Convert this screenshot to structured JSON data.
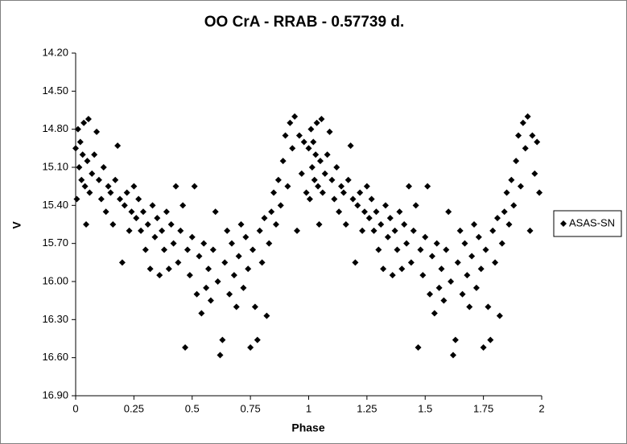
{
  "chart_data": {
    "type": "scatter",
    "title": "OO CrA - RRAB - 0.57739 d.",
    "xlabel": "Phase",
    "ylabel": "V",
    "xlim": [
      0,
      2
    ],
    "xticks": [
      0,
      0.25,
      0.5,
      0.75,
      1,
      1.25,
      1.5,
      1.75,
      2
    ],
    "ylim": [
      16.9,
      14.2
    ],
    "yticks": [
      {
        "value": 14.2,
        "label": "14.20"
      },
      {
        "value": 14.5,
        "label": "14.50"
      },
      {
        "value": 14.8,
        "label": "14.80"
      },
      {
        "value": 15.1,
        "label": "15.10"
      },
      {
        "value": 15.4,
        "label": "15.40"
      },
      {
        "value": 15.7,
        "label": "15.70"
      },
      {
        "value": 16.0,
        "label": "16.00"
      },
      {
        "value": 16.3,
        "label": "16.30"
      },
      {
        "value": 16.6,
        "label": "16.60"
      },
      {
        "value": 16.9,
        "label": "16.90"
      }
    ],
    "legend": "right",
    "series": [
      {
        "name": "ASAS-SN",
        "color": "#000000",
        "x": [
          0.0,
          0.005,
          0.01,
          0.015,
          0.02,
          0.025,
          0.03,
          0.035,
          0.04,
          0.045,
          0.05,
          0.055,
          0.06,
          0.07,
          0.08,
          0.09,
          0.1,
          0.11,
          0.12,
          0.13,
          0.14,
          0.15,
          0.16,
          0.17,
          0.18,
          0.19,
          0.2,
          0.21,
          0.22,
          0.23,
          0.24,
          0.25,
          0.26,
          0.27,
          0.28,
          0.29,
          0.3,
          0.31,
          0.32,
          0.33,
          0.34,
          0.35,
          0.36,
          0.37,
          0.38,
          0.39,
          0.4,
          0.41,
          0.42,
          0.43,
          0.44,
          0.45,
          0.46,
          0.47,
          0.48,
          0.49,
          0.5,
          0.51,
          0.52,
          0.53,
          0.54,
          0.55,
          0.56,
          0.57,
          0.58,
          0.59,
          0.6,
          0.61,
          0.62,
          0.63,
          0.64,
          0.65,
          0.66,
          0.67,
          0.68,
          0.69,
          0.7,
          0.71,
          0.72,
          0.73,
          0.74,
          0.75,
          0.76,
          0.77,
          0.78,
          0.79,
          0.8,
          0.81,
          0.82,
          0.83,
          0.84,
          0.85,
          0.86,
          0.87,
          0.88,
          0.89,
          0.9,
          0.91,
          0.92,
          0.93,
          0.94,
          0.95,
          0.96,
          0.97,
          0.98,
          0.99,
          1.0,
          1.005,
          1.01,
          1.015,
          1.02,
          1.025,
          1.03,
          1.035,
          1.04,
          1.045,
          1.05,
          1.055,
          1.06,
          1.07,
          1.08,
          1.09,
          1.1,
          1.11,
          1.12,
          1.13,
          1.14,
          1.15,
          1.16,
          1.17,
          1.18,
          1.19,
          1.2,
          1.21,
          1.22,
          1.23,
          1.24,
          1.25,
          1.26,
          1.27,
          1.28,
          1.29,
          1.3,
          1.31,
          1.32,
          1.33,
          1.34,
          1.35,
          1.36,
          1.37,
          1.38,
          1.39,
          1.4,
          1.41,
          1.42,
          1.43,
          1.44,
          1.45,
          1.46,
          1.47,
          1.48,
          1.49,
          1.5,
          1.51,
          1.52,
          1.53,
          1.54,
          1.55,
          1.56,
          1.57,
          1.58,
          1.59,
          1.6,
          1.61,
          1.62,
          1.63,
          1.64,
          1.65,
          1.66,
          1.67,
          1.68,
          1.69,
          1.7,
          1.71,
          1.72,
          1.73,
          1.74,
          1.75,
          1.76,
          1.77,
          1.78,
          1.79,
          1.8,
          1.81,
          1.82,
          1.83,
          1.84,
          1.85,
          1.86,
          1.87,
          1.88,
          1.89,
          1.9,
          1.91,
          1.92,
          1.93,
          1.94,
          1.95,
          1.96,
          1.97,
          1.98,
          1.99
        ],
        "y": [
          14.95,
          15.35,
          14.8,
          15.1,
          14.9,
          15.2,
          15.0,
          14.75,
          15.25,
          15.55,
          15.05,
          14.72,
          15.3,
          15.15,
          15.0,
          14.82,
          15.2,
          15.35,
          15.1,
          15.45,
          15.25,
          15.3,
          15.55,
          15.2,
          14.93,
          15.35,
          15.85,
          15.4,
          15.3,
          15.6,
          15.45,
          15.25,
          15.5,
          15.35,
          15.6,
          15.45,
          15.75,
          15.55,
          15.9,
          15.4,
          15.65,
          15.5,
          15.95,
          15.6,
          15.75,
          15.45,
          15.9,
          15.55,
          15.7,
          15.25,
          15.85,
          15.6,
          15.4,
          16.52,
          15.75,
          15.95,
          15.65,
          15.25,
          16.1,
          15.8,
          16.25,
          15.7,
          16.05,
          15.9,
          16.15,
          15.75,
          15.45,
          16.0,
          16.58,
          16.46,
          15.85,
          15.6,
          16.1,
          15.7,
          15.95,
          16.2,
          15.8,
          15.55,
          16.05,
          15.65,
          15.9,
          16.52,
          15.75,
          16.2,
          16.46,
          15.6,
          15.85,
          15.5,
          16.27,
          15.7,
          15.45,
          15.3,
          15.55,
          15.2,
          15.4,
          15.05,
          14.85,
          15.25,
          14.75,
          14.95,
          14.7,
          15.6,
          14.85,
          15.15,
          14.9,
          15.3,
          14.95,
          15.35,
          14.8,
          15.1,
          14.9,
          15.2,
          15.0,
          14.75,
          15.25,
          15.55,
          15.05,
          14.72,
          15.3,
          15.15,
          15.0,
          14.82,
          15.2,
          15.35,
          15.1,
          15.45,
          15.25,
          15.3,
          15.55,
          15.2,
          14.93,
          15.35,
          15.85,
          15.4,
          15.3,
          15.6,
          15.45,
          15.25,
          15.5,
          15.35,
          15.6,
          15.45,
          15.75,
          15.55,
          15.9,
          15.4,
          15.65,
          15.5,
          15.95,
          15.6,
          15.75,
          15.45,
          15.9,
          15.55,
          15.7,
          15.25,
          15.85,
          15.6,
          15.4,
          16.52,
          15.75,
          15.95,
          15.65,
          15.25,
          16.1,
          15.8,
          16.25,
          15.7,
          16.05,
          15.9,
          16.15,
          15.75,
          15.45,
          16.0,
          16.58,
          16.46,
          15.85,
          15.6,
          16.1,
          15.7,
          15.95,
          16.2,
          15.8,
          15.55,
          16.05,
          15.65,
          15.9,
          16.52,
          15.75,
          16.2,
          16.46,
          15.6,
          15.85,
          15.5,
          16.27,
          15.7,
          15.45,
          15.3,
          15.55,
          15.2,
          15.4,
          15.05,
          14.85,
          15.25,
          14.75,
          14.95,
          14.7,
          15.6,
          14.85,
          15.15,
          14.9,
          15.3
        ]
      }
    ]
  }
}
